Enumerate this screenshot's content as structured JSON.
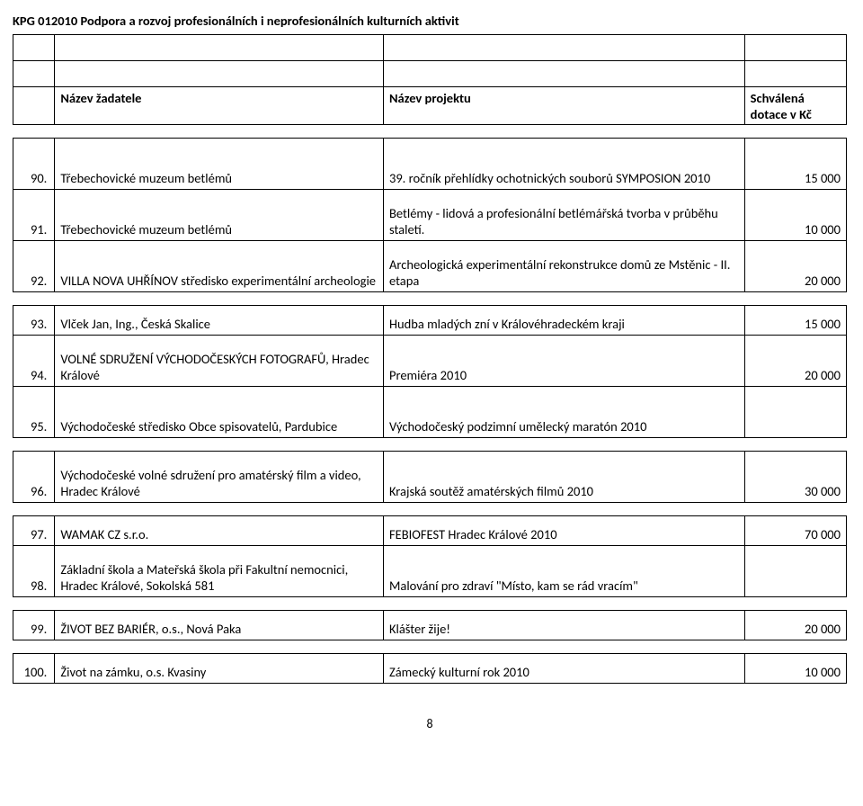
{
  "title": "KPG 012010 Podpora a rozvoj profesionálních i neprofesionálních kulturních aktivit",
  "headers": {
    "applicant": "Název žadatele",
    "project": "Název projektu",
    "amount": "Schválená dotace v Kč"
  },
  "rows": [
    {
      "n": "90.",
      "applicant": "Třebechovické muzeum betlémů",
      "project": "39. ročník přehlídky ochotnických souborů SYMPOSION 2010",
      "amount": "15 000",
      "tall": true
    },
    {
      "n": "91.",
      "applicant": "Třebechovické muzeum betlémů",
      "project": "Betlémy - lidová a profesionální betlémářská tvorba v průběhu staletí.",
      "amount": "10 000",
      "tall": true
    },
    {
      "n": "92.",
      "applicant": "VILLA NOVA UHŘÍNOV středisko experimentální archeologie",
      "project": "Archeologická experimentální rekonstrukce domů ze Mstěnic - II. etapa",
      "amount": "20 000",
      "tall": true
    },
    {
      "n": "93.",
      "applicant": "Vlček Jan, Ing., Česká Skalice",
      "project": "Hudba mladých zní v Královéhradeckém kraji",
      "amount": "15 000",
      "tall": false
    },
    {
      "n": "94.",
      "applicant": "VOLNÉ SDRUŽENÍ VÝCHODOČESKÝCH FOTOGRAFŮ, Hradec Králové",
      "project": "Premiéra 2010",
      "amount": "20 000",
      "tall": true
    },
    {
      "n": "95.",
      "applicant": "Východočeské středisko Obce spisovatelů, Pardubice",
      "project": "Východočeský podzimní umělecký maratón 2010",
      "amount": "",
      "tall": true
    },
    {
      "n": "96.",
      "applicant": "Východočeské volné sdružení pro amatérský film a video, Hradec Králové",
      "project": "Krajská soutěž amatérských filmů 2010",
      "amount": "30 000",
      "tall": true
    },
    {
      "n": "97.",
      "applicant": "WAMAK CZ s.r.o.",
      "project": "FEBIOFEST Hradec Králové 2010",
      "amount": "70 000",
      "tall": false
    },
    {
      "n": "98.",
      "applicant": "Základní škola a Mateřská škola při Fakultní nemocnici, Hradec Králové, Sokolská 581",
      "project": "Malování pro zdraví \"Místo, kam se rád vracím\"",
      "amount": "",
      "tall": true
    },
    {
      "n": "99.",
      "applicant": "ŽIVOT BEZ BARIÉR, o.s., Nová Paka",
      "project": "Klášter žije!",
      "amount": "20 000",
      "tall": false
    },
    {
      "n": "100.",
      "applicant": "Život na zámku, o.s. Kvasiny",
      "project": "Zámecký kulturní rok 2010",
      "amount": "10 000",
      "tall": false
    }
  ],
  "sections": [
    [
      0,
      1,
      2
    ],
    [
      3,
      4,
      5
    ],
    [
      6
    ],
    [
      7,
      8
    ],
    [
      9
    ],
    [
      10
    ]
  ],
  "page_number": "8",
  "colors": {
    "text": "#000000",
    "border": "#000000",
    "background": "#ffffff"
  }
}
